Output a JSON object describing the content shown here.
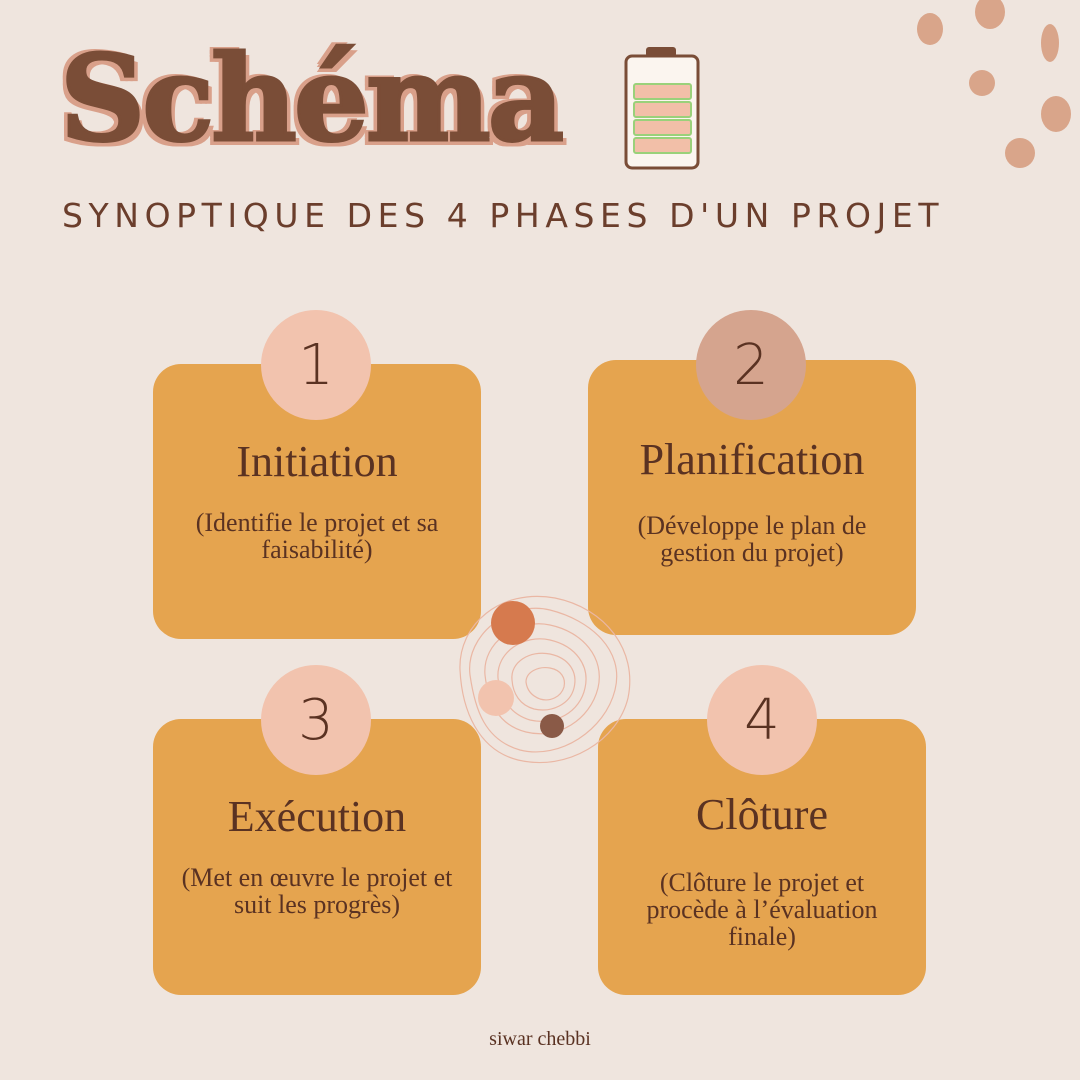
{
  "header": {
    "title": "Schéma",
    "subtitle": "SYNOPTIQUE DES 4 PHASES D'UN PROJET"
  },
  "icons": {
    "battery": "battery-icon",
    "dots": "decorative-dots",
    "center": "abstract-circles-decoration"
  },
  "colors": {
    "background": "#efe5de",
    "card": "#e5a44f",
    "text": "#5a3222",
    "title": "#7a4d37",
    "title_outline": "#d9a08a",
    "circle_light": "#f2c3ae",
    "circle_dark": "#d5a48e"
  },
  "phases": [
    {
      "number": "1",
      "title": "Initiation",
      "description": "(Identifie le projet et sa faisabilité)"
    },
    {
      "number": "2",
      "title": "Planification",
      "description": "(Développe le plan de gestion du projet)"
    },
    {
      "number": "3",
      "title": "Exécution",
      "description": "(Met en œuvre le projet et suit les progrès)"
    },
    {
      "number": "4",
      "title": "Clôture",
      "description": "(Clôture le projet et procède à l’évaluation finale)"
    }
  ],
  "footer": {
    "author": "siwar chebbi"
  }
}
